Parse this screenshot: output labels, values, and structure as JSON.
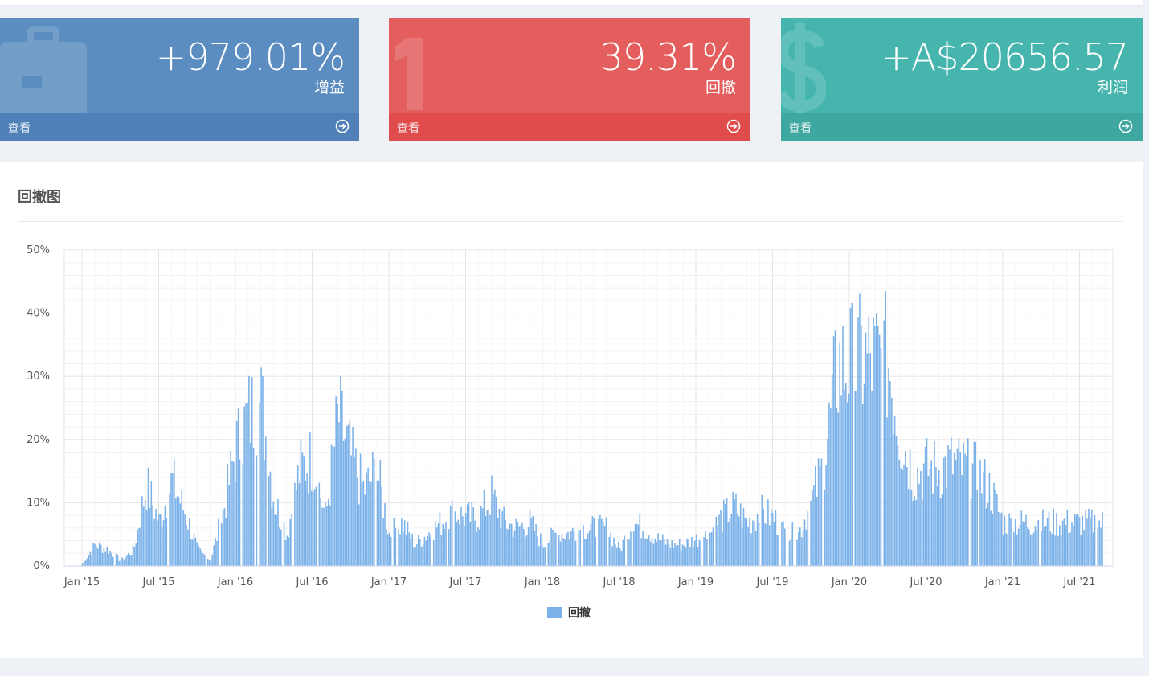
{
  "cards": [
    {
      "value": "+979.01%",
      "label": "增益",
      "footer": "查看",
      "icon": "briefcase-icon",
      "color": "#5b8dc1"
    },
    {
      "value": "39.31%",
      "label": "回撤",
      "footer": "查看",
      "icon": "digit-one-icon",
      "color": "#e45e5e"
    },
    {
      "value": "+A$20656.57",
      "label": "利润",
      "footer": "查看",
      "icon": "dollar-icon",
      "color": "#45b5ad"
    }
  ],
  "panel": {
    "title": "回撤图"
  },
  "chart_data": {
    "type": "bar",
    "title": "",
    "xlabel": "",
    "ylabel": "",
    "ylim": [
      0,
      50
    ],
    "y_ticks": [
      "0%",
      "10%",
      "20%",
      "30%",
      "40%",
      "50%"
    ],
    "x_ticks": [
      "Jan '15",
      "Jul '15",
      "Jan '16",
      "Jul '16",
      "Jan '17",
      "Jul '17",
      "Jan '18",
      "Jul '18",
      "Jan '19",
      "Jul '19",
      "Jan '20",
      "Jul '20",
      "Jan '21",
      "Jul '21"
    ],
    "grid": true,
    "legend": "bottom-center",
    "series": [
      {
        "name": "回撤",
        "color": "#7cb2ea",
        "monthly_values": [
          0.5,
          4,
          3,
          1,
          3,
          15,
          8,
          16,
          10,
          3,
          1,
          10,
          22,
          28,
          30,
          12,
          6,
          18,
          20,
          9,
          28,
          20,
          14,
          18,
          6,
          8,
          4,
          6,
          8,
          10,
          9,
          9,
          13,
          8,
          7,
          8,
          4,
          6,
          6,
          7,
          7,
          7,
          3,
          8,
          7,
          5,
          4,
          4,
          5,
          6,
          9,
          11,
          8,
          10,
          9,
          6,
          6,
          12,
          19,
          37,
          37,
          38,
          38,
          38,
          24,
          17,
          18,
          18,
          19,
          18,
          17,
          14,
          8
        ]
      }
    ]
  }
}
